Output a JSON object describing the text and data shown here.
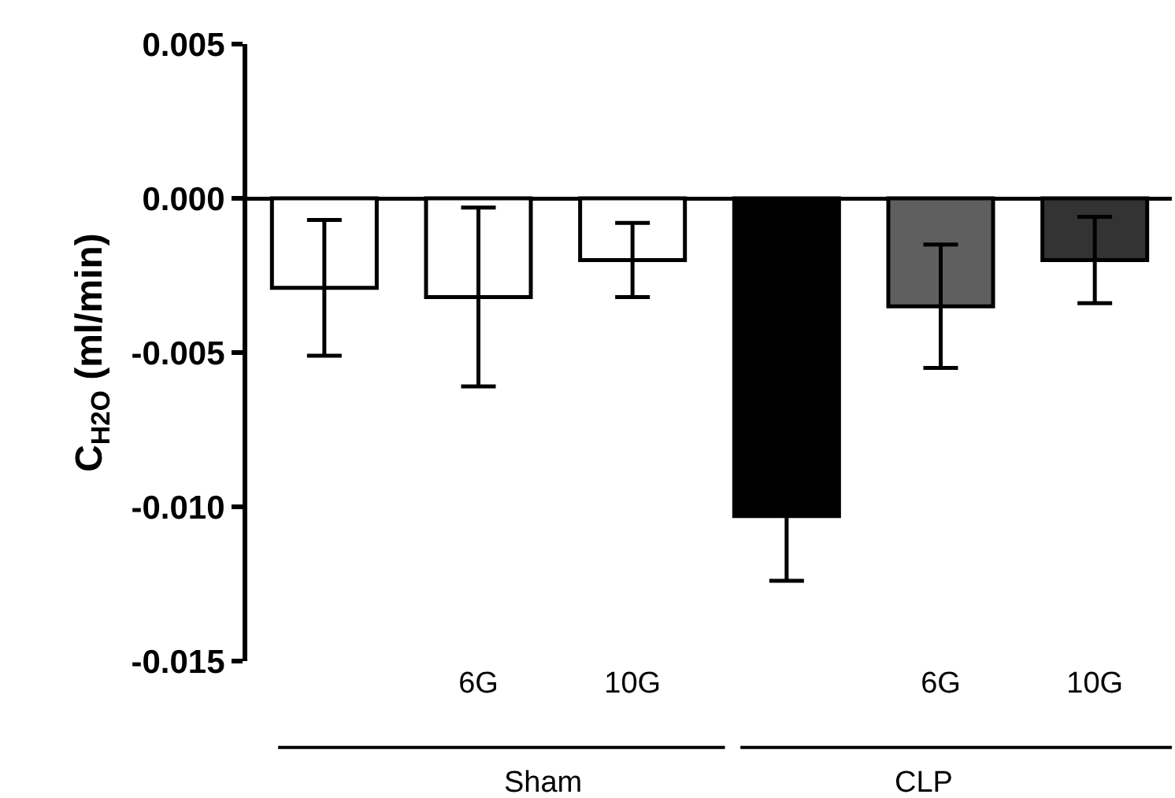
{
  "chart_data": {
    "type": "bar",
    "ylabel": "C$_{H2O}$ (ml/min)",
    "categories": [
      null,
      "6G",
      "10G",
      null,
      "6G",
      "10G"
    ],
    "values": [
      -0.0029,
      -0.0032,
      -0.002,
      -0.0103,
      -0.0035,
      -0.002
    ],
    "errors": [
      0.0022,
      0.0029,
      0.0012,
      0.0021,
      0.002,
      0.0014
    ],
    "colors": [
      "#ffffff",
      "#ffffff",
      "#ffffff",
      "#000000",
      "#5f5f5f",
      "#333333"
    ],
    "ylim": [
      -0.015,
      0.005
    ],
    "yticks": [
      {
        "value": -0.015,
        "label": "-0.015"
      },
      {
        "value": -0.01,
        "label": "-0.010"
      },
      {
        "value": -0.005,
        "label": "-0.005"
      },
      {
        "value": 0,
        "label": "0.000"
      },
      {
        "value": 0.005,
        "label": "0.005"
      }
    ],
    "annotations": [
      "Sham",
      "CLP"
    ]
  }
}
